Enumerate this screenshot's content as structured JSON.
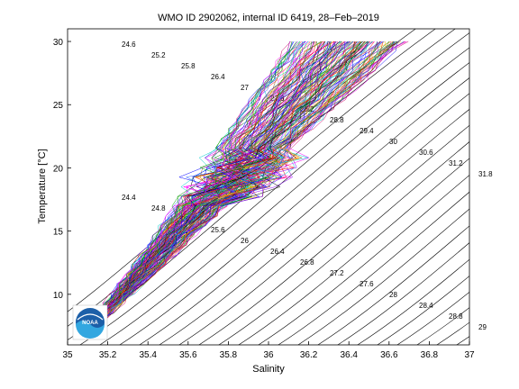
{
  "chart_data": {
    "type": "line",
    "title": "WMO ID 2902062, internal ID 6419, 28–Feb–2019",
    "xlabel": "Salinity",
    "ylabel": "Temperature [°C]",
    "xlim": [
      35,
      37
    ],
    "ylim": [
      6,
      31
    ],
    "x_ticks": [
      "35",
      "35.2",
      "35.4",
      "35.6",
      "35.8",
      "36",
      "36.2",
      "36.4",
      "36.6",
      "36.8",
      "37"
    ],
    "y_ticks": [
      "10",
      "15",
      "20",
      "25",
      "30"
    ],
    "density_contour_labels": [
      "24.6",
      "25.2",
      "25.8",
      "26.4",
      "27",
      "27.6",
      "28.2",
      "28.8",
      "29.4",
      "30",
      "30.6",
      "31.2",
      "31.8",
      "24.4",
      "24.8",
      "25.2",
      "25.6",
      "26",
      "26.4",
      "26.8",
      "27.2",
      "27.6",
      "28",
      "28.4",
      "28.8",
      "29"
    ],
    "profile_count": 160,
    "grid": false,
    "logo": "NOAA"
  }
}
